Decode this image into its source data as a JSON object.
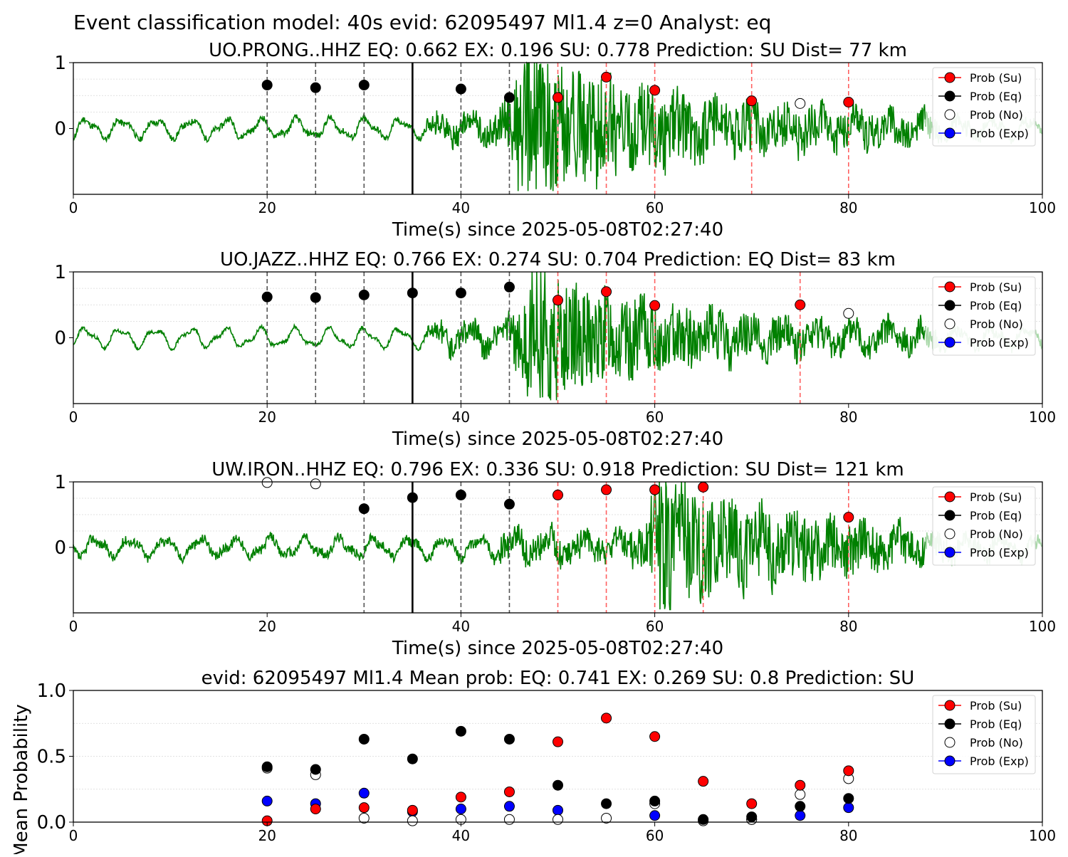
{
  "figure": {
    "suptitle": "Event classification model: 40s evid: 62095497 Ml1.4 z=0 Analyst: eq"
  },
  "legend": {
    "entries": [
      {
        "key": "su",
        "label": "Prob (Su)",
        "color": "#ff0000",
        "hollow": false
      },
      {
        "key": "eq",
        "label": "Prob (Eq)",
        "color": "#000000",
        "hollow": false
      },
      {
        "key": "no",
        "label": "Prob (No)",
        "color": "#ffffff",
        "hollow": true
      },
      {
        "key": "exp",
        "label": "Prob (Exp)",
        "color": "#0000ff",
        "hollow": false
      }
    ],
    "placement": "upper-right"
  },
  "colors": {
    "waveform": "#008000",
    "waveform_faded": "#a8d8a8",
    "eq_window_line": "#555555",
    "su_window_line": "#ff6060",
    "pick_line": "#000000"
  },
  "chart_data": [
    {
      "type": "line",
      "title": "UO.PRONG..HHZ   EQ: 0.662  EX: 0.196  SU: 0.778   Prediction: SU    Dist= 77 km",
      "xlabel": "Time(s) since 2025-05-08T02:27:40",
      "ylabel": "",
      "xlim": [
        0,
        100
      ],
      "ylim": [
        -1,
        1
      ],
      "xticks": [
        "0",
        "20",
        "40",
        "60",
        "80",
        "100"
      ],
      "yticks": [
        "0",
        "1"
      ],
      "pick_time": 35,
      "eq_window_lines": [
        20,
        25,
        30,
        40,
        45
      ],
      "su_window_lines": [
        50,
        55,
        60,
        70,
        80
      ],
      "waveform": {
        "signal_start": 36,
        "peak_time": 47,
        "peak_amp": 0.95,
        "coda_decay": 14,
        "pre_noise": 0.05,
        "seed": 11
      },
      "points": [
        {
          "x": 20,
          "y": 0.66,
          "class": "eq"
        },
        {
          "x": 25,
          "y": 0.62,
          "class": "eq"
        },
        {
          "x": 30,
          "y": 0.66,
          "class": "eq"
        },
        {
          "x": 40,
          "y": 0.6,
          "class": "eq"
        },
        {
          "x": 45,
          "y": 0.47,
          "class": "eq"
        },
        {
          "x": 50,
          "y": 0.47,
          "class": "su"
        },
        {
          "x": 55,
          "y": 0.78,
          "class": "su"
        },
        {
          "x": 60,
          "y": 0.58,
          "class": "su"
        },
        {
          "x": 70,
          "y": 0.42,
          "class": "su"
        },
        {
          "x": 75,
          "y": 0.38,
          "class": "no"
        },
        {
          "x": 80,
          "y": 0.4,
          "class": "su"
        }
      ]
    },
    {
      "type": "line",
      "title": "UO.JAZZ..HHZ   EQ: 0.766  EX: 0.274  SU: 0.704   Prediction: EQ    Dist= 83 km",
      "xlabel": "Time(s) since 2025-05-08T02:27:40",
      "ylabel": "",
      "xlim": [
        0,
        100
      ],
      "ylim": [
        -1,
        1
      ],
      "xticks": [
        "0",
        "20",
        "40",
        "60",
        "80",
        "100"
      ],
      "yticks": [
        "0",
        "1"
      ],
      "pick_time": 35,
      "eq_window_lines": [
        20,
        25,
        30,
        40,
        45
      ],
      "su_window_lines": [
        50,
        55,
        60,
        75
      ],
      "waveform": {
        "signal_start": 36,
        "peak_time": 48,
        "peak_amp": 0.9,
        "coda_decay": 12,
        "pre_noise": 0.03,
        "seed": 23
      },
      "points": [
        {
          "x": 20,
          "y": 0.62,
          "class": "eq"
        },
        {
          "x": 25,
          "y": 0.61,
          "class": "eq"
        },
        {
          "x": 30,
          "y": 0.65,
          "class": "eq"
        },
        {
          "x": 35,
          "y": 0.68,
          "class": "eq"
        },
        {
          "x": 40,
          "y": 0.68,
          "class": "eq"
        },
        {
          "x": 45,
          "y": 0.77,
          "class": "eq"
        },
        {
          "x": 50,
          "y": 0.57,
          "class": "su"
        },
        {
          "x": 55,
          "y": 0.7,
          "class": "su"
        },
        {
          "x": 60,
          "y": 0.49,
          "class": "su"
        },
        {
          "x": 75,
          "y": 0.5,
          "class": "su"
        },
        {
          "x": 80,
          "y": 0.37,
          "class": "no"
        }
      ]
    },
    {
      "type": "line",
      "title": "UW.IRON..HHZ   EQ: 0.796  EX: 0.336  SU: 0.918   Prediction: SU    Dist= 121 km",
      "xlabel": "Time(s) since 2025-05-08T02:27:40",
      "ylabel": "",
      "xlim": [
        0,
        100
      ],
      "ylim": [
        -1,
        1
      ],
      "xticks": [
        "0",
        "20",
        "40",
        "60",
        "80",
        "100"
      ],
      "yticks": [
        "0",
        "1"
      ],
      "pick_time": 35,
      "eq_window_lines": [
        30,
        40,
        45
      ],
      "su_window_lines": [
        50,
        55,
        60,
        65,
        80
      ],
      "waveform": {
        "signal_start": 43,
        "peak_time": 61,
        "peak_amp": 0.9,
        "coda_decay": 12,
        "pre_noise": 0.08,
        "seed": 37
      },
      "points": [
        {
          "x": 20,
          "y": 0.99,
          "class": "no"
        },
        {
          "x": 25,
          "y": 0.97,
          "class": "no"
        },
        {
          "x": 30,
          "y": 0.59,
          "class": "eq"
        },
        {
          "x": 35,
          "y": 0.76,
          "class": "eq"
        },
        {
          "x": 40,
          "y": 0.8,
          "class": "eq"
        },
        {
          "x": 45,
          "y": 0.66,
          "class": "eq"
        },
        {
          "x": 50,
          "y": 0.8,
          "class": "su"
        },
        {
          "x": 55,
          "y": 0.88,
          "class": "su"
        },
        {
          "x": 60,
          "y": 0.88,
          "class": "su"
        },
        {
          "x": 65,
          "y": 0.92,
          "class": "su"
        },
        {
          "x": 80,
          "y": 0.46,
          "class": "su"
        }
      ]
    },
    {
      "type": "scatter",
      "title": "evid: 62095497  Ml1.4   Mean prob:   EQ: 0.741  EX: 0.269  SU: 0.8   Prediction: SU",
      "xlabel": "",
      "ylabel": "Mean Probability",
      "xlim": [
        0,
        100
      ],
      "ylim": [
        0,
        1
      ],
      "xticks": [
        "0",
        "20",
        "40",
        "60",
        "80",
        "100"
      ],
      "yticks": [
        "0.0",
        "0.5",
        "1.0"
      ],
      "x": [
        20,
        25,
        30,
        35,
        40,
        45,
        50,
        55,
        60,
        65,
        70,
        75,
        80
      ],
      "series": [
        {
          "name": "Prob (Exp)",
          "class": "exp",
          "values": [
            0.16,
            0.14,
            0.22,
            0.08,
            0.1,
            0.12,
            0.09,
            null,
            0.05,
            null,
            0.02,
            0.05,
            0.11
          ]
        },
        {
          "name": "Prob (No)",
          "class": "no",
          "values": [
            0.41,
            0.36,
            0.03,
            0.01,
            0.02,
            0.02,
            0.02,
            0.03,
            0.14,
            0.01,
            0.02,
            0.21,
            0.33
          ]
        },
        {
          "name": "Prob (Eq)",
          "class": "eq",
          "values": [
            0.42,
            0.4,
            0.63,
            0.48,
            0.69,
            0.63,
            0.28,
            0.14,
            0.16,
            0.02,
            0.04,
            0.12,
            0.18
          ]
        },
        {
          "name": "Prob (Su)",
          "class": "su",
          "values": [
            0.01,
            0.1,
            0.11,
            0.09,
            0.19,
            0.23,
            0.61,
            0.79,
            0.65,
            0.31,
            0.14,
            0.28,
            0.39
          ]
        }
      ]
    }
  ]
}
